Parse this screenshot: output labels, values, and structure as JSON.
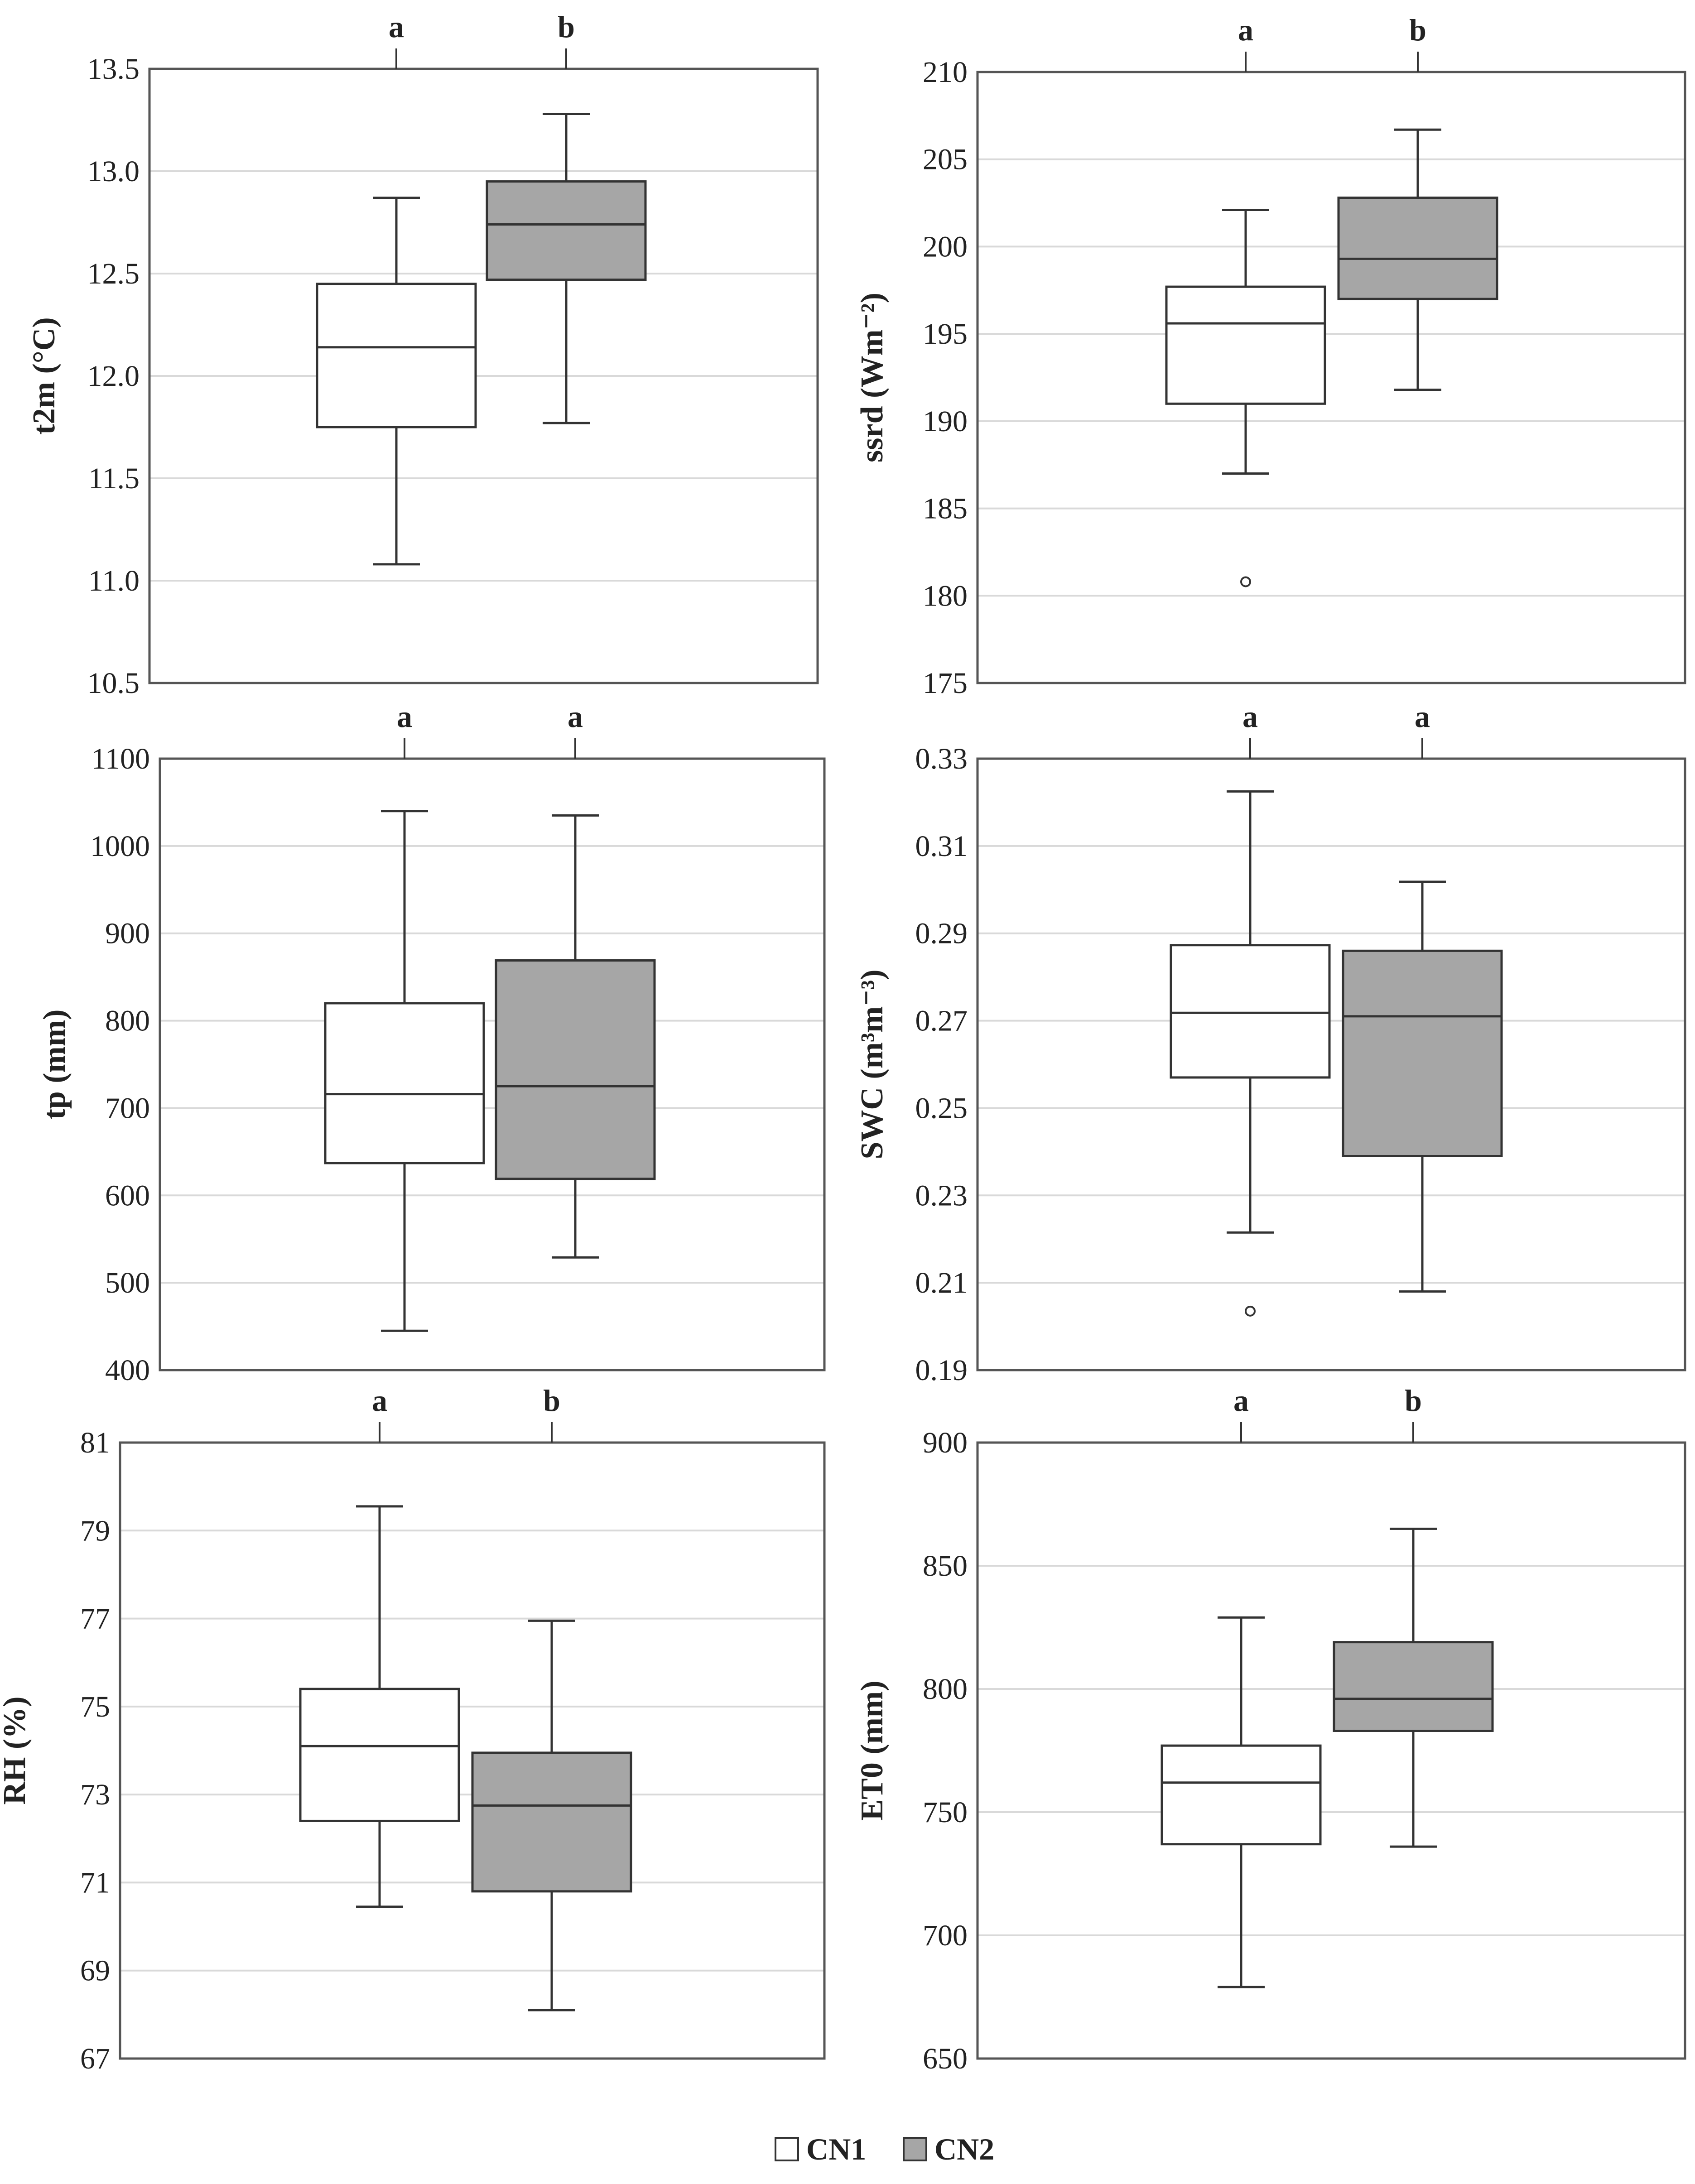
{
  "colors": {
    "cn1_fill": "#ffffff",
    "cn2_fill": "#a6a6a6",
    "stroke": "#333333",
    "grid": "#d9d9d9",
    "frame": "#555555"
  },
  "legend": {
    "items": [
      {
        "label": "CN1",
        "color": "#ffffff"
      },
      {
        "label": "CN2",
        "color": "#a6a6a6"
      }
    ]
  },
  "chart_data": [
    {
      "type": "boxplot",
      "ylabel": "t2m (°C)",
      "ylim": [
        10.5,
        13.5
      ],
      "yticks": [
        10.5,
        11.0,
        11.5,
        12.0,
        12.5,
        13.0,
        13.5
      ],
      "tick_labels": [
        "10.5",
        "11.0",
        "11.5",
        "12.0",
        "12.5",
        "13.0",
        "13.5"
      ],
      "series": [
        {
          "name": "CN1",
          "letter": "a",
          "whisker_low": 11.08,
          "q1": 11.75,
          "median": 12.14,
          "q3": 12.45,
          "whisker_high": 12.87,
          "outliers": []
        },
        {
          "name": "CN2",
          "letter": "b",
          "whisker_low": 11.77,
          "q1": 12.47,
          "median": 12.74,
          "q3": 12.95,
          "whisker_high": 13.28,
          "outliers": []
        }
      ]
    },
    {
      "type": "boxplot",
      "ylabel": "ssrd (Wm⁻²)",
      "ylim": [
        175,
        210
      ],
      "yticks": [
        175,
        180,
        185,
        190,
        195,
        200,
        205,
        210
      ],
      "tick_labels": [
        "175",
        "180",
        "185",
        "190",
        "195",
        "200",
        "205",
        "210"
      ],
      "series": [
        {
          "name": "CN1",
          "letter": "a",
          "whisker_low": 187.0,
          "q1": 191.0,
          "median": 195.6,
          "q3": 197.7,
          "whisker_high": 202.1,
          "outliers": [
            180.8
          ]
        },
        {
          "name": "CN2",
          "letter": "b",
          "whisker_low": 191.8,
          "q1": 197.0,
          "median": 199.3,
          "q3": 202.8,
          "whisker_high": 206.7,
          "outliers": []
        }
      ]
    },
    {
      "type": "boxplot",
      "ylabel": "tp (mm)",
      "ylim": [
        400,
        1100
      ],
      "yticks": [
        400,
        500,
        600,
        700,
        800,
        900,
        1000,
        1100
      ],
      "tick_labels": [
        "400",
        "500",
        "600",
        "700",
        "800",
        "900",
        "1000",
        "1100"
      ],
      "series": [
        {
          "name": "CN1",
          "letter": "a",
          "whisker_low": 445,
          "q1": 637,
          "median": 716,
          "q3": 820,
          "whisker_high": 1040,
          "outliers": []
        },
        {
          "name": "CN2",
          "letter": "a",
          "whisker_low": 529,
          "q1": 619,
          "median": 725,
          "q3": 869,
          "whisker_high": 1035,
          "outliers": []
        }
      ]
    },
    {
      "type": "boxplot",
      "ylabel": "SWC (m³m⁻³)",
      "ylim": [
        0.19,
        0.33
      ],
      "yticks": [
        0.19,
        0.21,
        0.23,
        0.25,
        0.27,
        0.29,
        0.31,
        0.33
      ],
      "tick_labels": [
        "0.19",
        "0.21",
        "0.23",
        "0.25",
        "0.27",
        "0.29",
        "0.31",
        "0.33"
      ],
      "series": [
        {
          "name": "CN1",
          "letter": "a",
          "whisker_low": 0.2215,
          "q1": 0.257,
          "median": 0.2718,
          "q3": 0.2873,
          "whisker_high": 0.3225,
          "outliers": [
            0.2035
          ]
        },
        {
          "name": "CN2",
          "letter": "a",
          "whisker_low": 0.208,
          "q1": 0.239,
          "median": 0.271,
          "q3": 0.286,
          "whisker_high": 0.3018,
          "outliers": []
        }
      ]
    },
    {
      "type": "boxplot",
      "ylabel": "RH (%)",
      "ylim": [
        67,
        81
      ],
      "yticks": [
        67,
        69,
        71,
        73,
        75,
        77,
        79,
        81
      ],
      "tick_labels": [
        "67",
        "69",
        "71",
        "73",
        "75",
        "77",
        "79",
        "81"
      ],
      "series": [
        {
          "name": "CN1",
          "letter": "a",
          "whisker_low": 70.45,
          "q1": 72.4,
          "median": 74.1,
          "q3": 75.4,
          "whisker_high": 79.55,
          "outliers": []
        },
        {
          "name": "CN2",
          "letter": "b",
          "whisker_low": 68.1,
          "q1": 70.8,
          "median": 72.75,
          "q3": 73.95,
          "whisker_high": 76.95,
          "outliers": []
        }
      ]
    },
    {
      "type": "boxplot",
      "ylabel": "ET0 (mm)",
      "ylim": [
        650,
        900
      ],
      "yticks": [
        650,
        700,
        750,
        800,
        850,
        900
      ],
      "tick_labels": [
        "650",
        "700",
        "750",
        "800",
        "850",
        "900"
      ],
      "series": [
        {
          "name": "CN1",
          "letter": "a",
          "whisker_low": 679,
          "q1": 737,
          "median": 762,
          "q3": 777,
          "whisker_high": 829,
          "outliers": []
        },
        {
          "name": "CN2",
          "letter": "b",
          "whisker_low": 736,
          "q1": 783,
          "median": 796,
          "q3": 819,
          "whisker_high": 865,
          "outliers": []
        }
      ]
    }
  ]
}
